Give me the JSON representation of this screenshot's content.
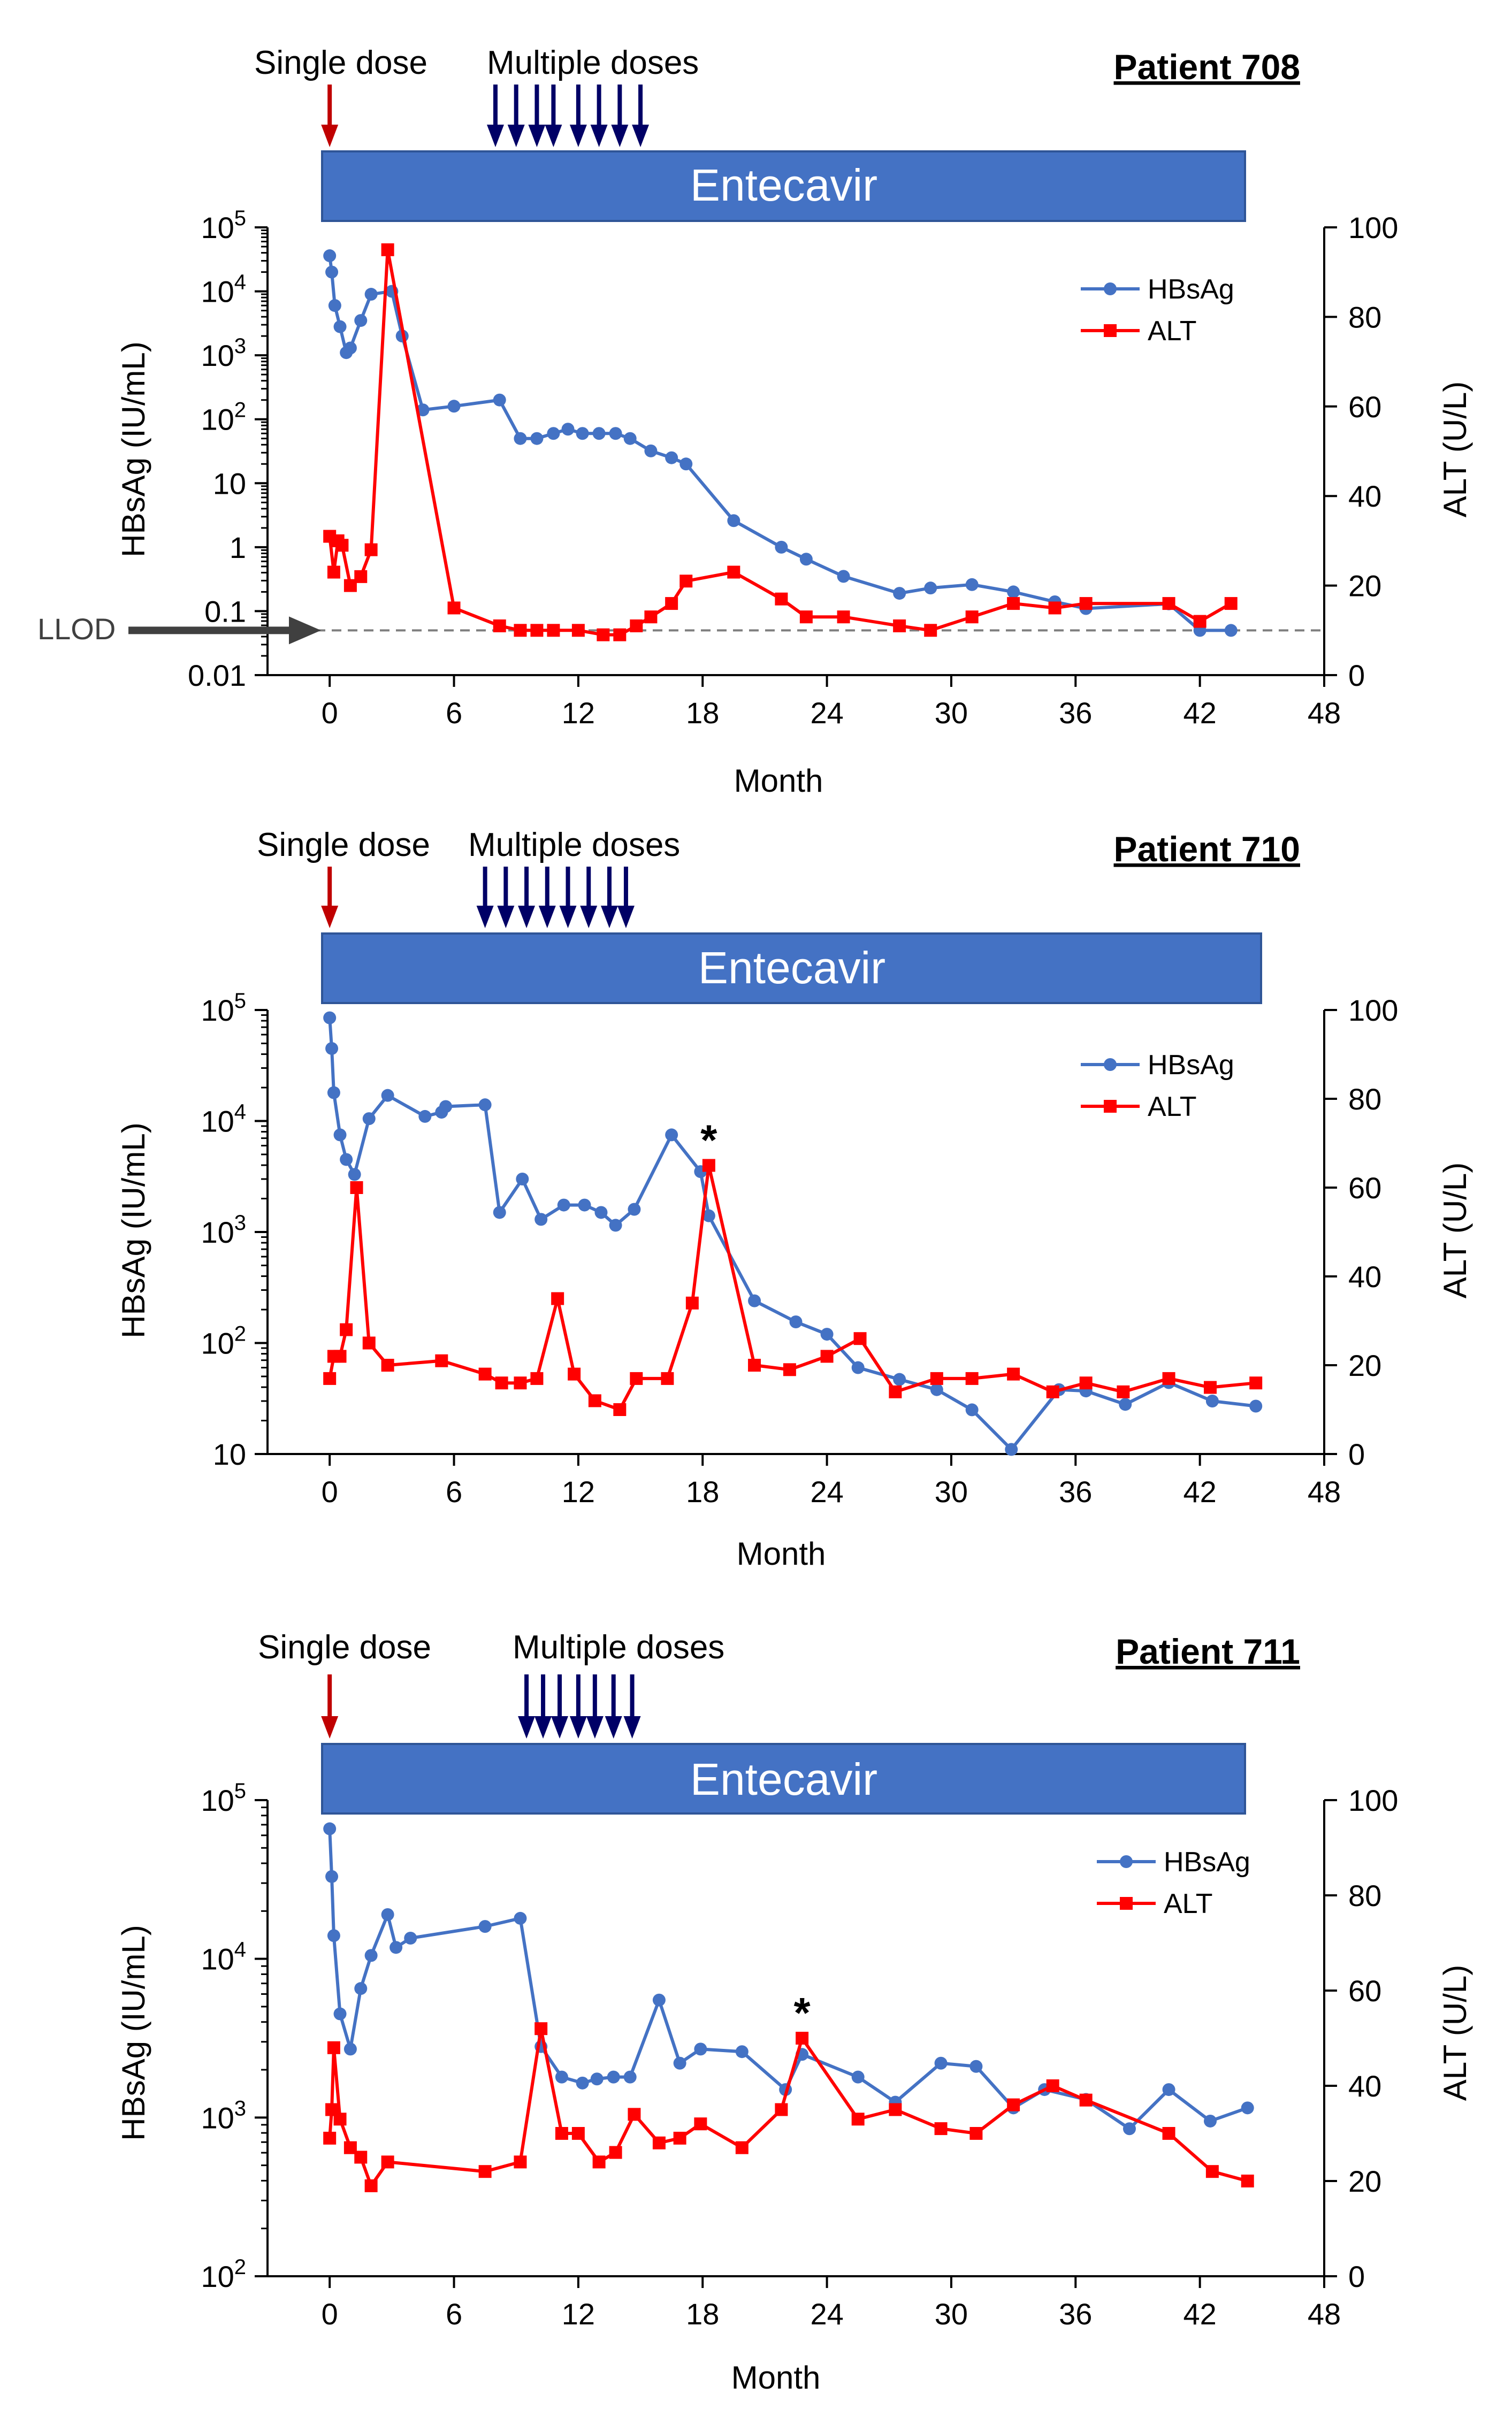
{
  "colors": {
    "hbsag": "#4472C4",
    "alt": "#FF0000",
    "single_dose_arrow": "#C00000",
    "multi_dose_arrow": "#000066",
    "banner": "#4472C4",
    "llod_line": "#7F7F7F"
  },
  "chart_data": [
    {
      "type": "line",
      "title": "Patient 708",
      "banner": "Entecavir",
      "single_dose_label": "Single dose",
      "multiple_doses_label": "Multiple doses",
      "single_dose_month": 0,
      "multiple_dose_months": [
        8,
        9,
        10,
        10.8,
        12,
        13,
        14,
        15
      ],
      "xlabel": "Month",
      "ylabel_left": "HBsAg (IU/mL)",
      "ylabel_right": "ALT (U/L)",
      "xlim": [
        -3,
        48
      ],
      "xticks": [
        0,
        6,
        12,
        18,
        24,
        30,
        36,
        42,
        48
      ],
      "left_axis": {
        "scale": "log",
        "ylim": [
          0.01,
          100000
        ],
        "tick_labels": [
          "0.01",
          "0.1",
          "1",
          "10",
          "10^2",
          "10^3",
          "10^4",
          "10^5"
        ],
        "tick_values": [
          0.01,
          0.1,
          1,
          10,
          100,
          1000,
          10000,
          100000
        ]
      },
      "right_axis": {
        "ylim": [
          0,
          100
        ],
        "ticks": [
          0,
          20,
          40,
          60,
          80,
          100
        ]
      },
      "llod": {
        "label": "LLOD",
        "value": 0.05
      },
      "legend": [
        "HBsAg",
        "ALT"
      ],
      "series": [
        {
          "name": "HBsAg",
          "axis": "left",
          "x": [
            0,
            0.1,
            0.25,
            0.5,
            0.8,
            1.0,
            1.5,
            2.0,
            3.0,
            3.5,
            4.5,
            6.0,
            8.2,
            9.2,
            10.0,
            10.8,
            11.5,
            12.2,
            13.0,
            13.8,
            14.5,
            15.5,
            16.5,
            17.2,
            19.5,
            21.8,
            23.0,
            24.8,
            27.5,
            29.0,
            31.0,
            33.0,
            35.0,
            36.5,
            40.5,
            42.0,
            43.5
          ],
          "values": [
            36000,
            20000,
            6000,
            2800,
            1100,
            1300,
            3500,
            9000,
            10000,
            2000,
            140,
            160,
            200,
            50,
            50,
            60,
            70,
            60,
            60,
            60,
            50,
            32,
            25,
            20,
            2.6,
            1.0,
            0.65,
            0.35,
            0.19,
            0.23,
            0.26,
            0.2,
            0.14,
            0.11,
            0.13,
            0.05,
            0.05
          ]
        },
        {
          "name": "ALT",
          "axis": "right",
          "x": [
            0,
            0.2,
            0.4,
            0.6,
            1.0,
            1.5,
            2.0,
            2.8,
            6.0,
            8.2,
            9.2,
            10.0,
            10.8,
            12.0,
            13.2,
            14.0,
            14.8,
            15.5,
            16.5,
            17.2,
            19.5,
            21.8,
            23.0,
            24.8,
            27.5,
            29.0,
            31.0,
            33.0,
            35.0,
            36.5,
            40.5,
            42.0,
            43.5
          ],
          "values": [
            31,
            23,
            30,
            29,
            20,
            22,
            28,
            95,
            15,
            11,
            10,
            10,
            10,
            10,
            9,
            9,
            11,
            13,
            16,
            21,
            23,
            17,
            13,
            13,
            11,
            10,
            13,
            16,
            15,
            16,
            16,
            12,
            16
          ]
        }
      ],
      "annotations": []
    },
    {
      "type": "line",
      "title": "Patient 710",
      "banner": "Entecavir",
      "single_dose_label": "Single dose",
      "multiple_doses_label": "Multiple doses",
      "single_dose_month": 0,
      "multiple_dose_months": [
        7.5,
        8.5,
        9.5,
        10.5,
        11.5,
        12.5,
        13.5,
        14.3
      ],
      "xlabel": "Month",
      "ylabel_left": "HBsAg (IU/mL)",
      "ylabel_right": "ALT (U/L)",
      "xlim": [
        -3,
        48
      ],
      "xticks": [
        0,
        6,
        12,
        18,
        24,
        30,
        36,
        42,
        48
      ],
      "left_axis": {
        "scale": "log",
        "ylim": [
          10,
          100000
        ],
        "tick_labels": [
          "10",
          "10^2",
          "10^3",
          "10^4",
          "10^5"
        ],
        "tick_values": [
          10,
          100,
          1000,
          10000,
          100000
        ]
      },
      "right_axis": {
        "ylim": [
          0,
          100
        ],
        "ticks": [
          0,
          20,
          40,
          60,
          80,
          100
        ]
      },
      "legend": [
        "HBsAg",
        "ALT"
      ],
      "series": [
        {
          "name": "HBsAg",
          "axis": "left",
          "x": [
            0,
            0.1,
            0.2,
            0.5,
            0.8,
            1.2,
            1.9,
            2.8,
            4.6,
            5.4,
            5.6,
            7.5,
            8.2,
            9.3,
            10.2,
            11.3,
            12.3,
            13.1,
            13.8,
            14.7,
            16.5,
            17.9,
            18.3,
            20.5,
            22.5,
            24.0,
            25.5,
            27.5,
            29.3,
            31.0,
            32.9,
            35.2,
            36.5,
            38.4,
            40.5,
            42.6,
            44.7
          ],
          "values": [
            85000,
            45000,
            18000,
            7500,
            4500,
            3300,
            10500,
            17000,
            11000,
            12000,
            13500,
            14000,
            1500,
            3000,
            1300,
            1750,
            1750,
            1500,
            1150,
            1600,
            7500,
            3500,
            1400,
            240,
            155,
            120,
            60,
            47,
            38,
            25,
            11,
            38,
            37,
            28,
            44,
            30,
            27
          ]
        },
        {
          "name": "ALT",
          "axis": "right",
          "x": [
            0,
            0.2,
            0.5,
            0.8,
            1.3,
            1.9,
            2.8,
            5.4,
            7.5,
            8.3,
            9.2,
            10.0,
            11.0,
            11.8,
            12.8,
            14.0,
            14.8,
            16.3,
            17.5,
            18.3,
            20.5,
            22.2,
            24.0,
            25.6,
            27.3,
            29.3,
            31.0,
            33.0,
            34.9,
            36.5,
            38.3,
            40.5,
            42.5,
            44.7
          ],
          "values": [
            17,
            22,
            22,
            28,
            60,
            25,
            20,
            21,
            18,
            16,
            16,
            17,
            35,
            18,
            12,
            10,
            17,
            17,
            34,
            65,
            20,
            19,
            22,
            26,
            14,
            17,
            17,
            18,
            14,
            16,
            14,
            17,
            15,
            16
          ]
        }
      ],
      "annotations": [
        {
          "text": "*",
          "x": 18.3,
          "axis": "right",
          "value": 65
        }
      ]
    },
    {
      "type": "line",
      "title": "Patient 711",
      "banner": "Entecavir",
      "single_dose_label": "Single dose",
      "multiple_doses_label": "Multiple doses",
      "single_dose_month": 0,
      "multiple_dose_months": [
        9.5,
        10.3,
        11.1,
        12.0,
        12.8,
        13.7,
        14.6
      ],
      "xlabel": "Month",
      "ylabel_left": "HBsAg (IU/mL)",
      "ylabel_right": "ALT (U/L)",
      "xlim": [
        -3,
        48
      ],
      "xticks": [
        0,
        6,
        12,
        18,
        24,
        30,
        36,
        42,
        48
      ],
      "left_axis": {
        "scale": "log",
        "ylim": [
          100,
          100000
        ],
        "tick_labels": [
          "10^2",
          "10^3",
          "10^4",
          "10^5"
        ],
        "tick_values": [
          100,
          1000,
          10000,
          100000
        ]
      },
      "right_axis": {
        "ylim": [
          0,
          100
        ],
        "ticks": [
          0,
          20,
          40,
          60,
          80,
          100
        ]
      },
      "legend": [
        "HBsAg",
        "ALT"
      ],
      "series": [
        {
          "name": "HBsAg",
          "axis": "left",
          "x": [
            0,
            0.1,
            0.2,
            0.5,
            1.0,
            1.5,
            2.0,
            2.8,
            3.2,
            3.9,
            7.5,
            9.2,
            10.2,
            11.2,
            12.2,
            12.9,
            13.7,
            14.5,
            15.9,
            16.9,
            17.9,
            19.9,
            22.0,
            22.8,
            25.5,
            27.3,
            29.5,
            31.2,
            33.0,
            34.5,
            36.5,
            38.6,
            40.5,
            42.5,
            44.3
          ],
          "values": [
            66000,
            33000,
            14000,
            4500,
            2700,
            6500,
            10500,
            19000,
            11800,
            13500,
            16000,
            18000,
            2800,
            1800,
            1650,
            1750,
            1800,
            1800,
            5500,
            2200,
            2700,
            2600,
            1500,
            2500,
            1800,
            1250,
            2200,
            2100,
            1150,
            1500,
            1300,
            850,
            1500,
            950,
            1150
          ]
        },
        {
          "name": "ALT",
          "axis": "right",
          "x": [
            0,
            0.1,
            0.2,
            0.5,
            1.0,
            1.5,
            2.0,
            2.8,
            7.5,
            9.2,
            10.2,
            11.2,
            12.0,
            13.0,
            13.8,
            14.7,
            15.9,
            16.9,
            17.9,
            19.9,
            21.8,
            22.8,
            25.5,
            27.3,
            29.5,
            31.2,
            33.0,
            34.9,
            36.5,
            40.5,
            42.6,
            44.3
          ],
          "values": [
            29,
            35,
            48,
            33,
            27,
            25,
            19,
            24,
            22,
            24,
            52,
            30,
            30,
            24,
            26,
            34,
            28,
            29,
            32,
            27,
            35,
            50,
            33,
            35,
            31,
            30,
            36,
            40,
            37,
            30,
            22,
            20
          ]
        }
      ],
      "annotations": [
        {
          "text": "*",
          "x": 22.8,
          "axis": "right",
          "value": 50
        }
      ]
    }
  ]
}
